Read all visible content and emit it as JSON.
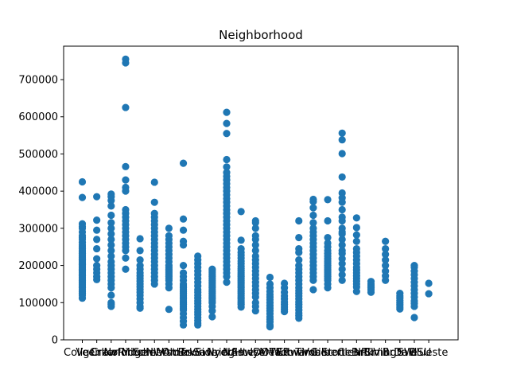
{
  "chart_data": {
    "type": "scatter",
    "title": "Neighborhood",
    "xlabel": "",
    "ylabel": "",
    "ylim": [
      0,
      790000
    ],
    "yticks": [
      0,
      100000,
      200000,
      300000,
      400000,
      500000,
      600000,
      700000
    ],
    "ytick_labels": [
      "0",
      "100000",
      "200000",
      "300000",
      "400000",
      "500000",
      "600000",
      "700000"
    ],
    "point_color": "#1f77b4",
    "grid": false,
    "legend": "none",
    "categories": [
      "CollgCr",
      "Veenker",
      "Crawfor",
      "NoRidge",
      "Mitchel",
      "Somerst",
      "NWAmes",
      "OldTown",
      "BrkSide",
      "Sawyer",
      "NridgHt",
      "NAmes",
      "SawyerW",
      "IDOTRR",
      "MeadowV",
      "Edwards",
      "Timber",
      "Gilbert",
      "StoneBr",
      "ClearCr",
      "NPkVill",
      "Blmngtn",
      "BrDale",
      "SWISU",
      "Blueste"
    ],
    "series": [
      {
        "values": [
          [
            425000,
            383000,
            312000,
            305000,
            300000,
            290000,
            280000,
            275000,
            270000,
            262000,
            255000,
            250000,
            245000,
            240000,
            236000,
            232000,
            228000,
            225000,
            222000,
            218000,
            215000,
            212000,
            208000,
            205000,
            202000,
            199000,
            196000,
            193000,
            190000,
            187000,
            184000,
            180000,
            176000,
            172000,
            168000,
            164000,
            160000,
            156000,
            152000,
            148000,
            144000,
            140000,
            135000,
            130000,
            125000,
            120000,
            112000
          ],
          [
            385000,
            322000,
            295000,
            270000,
            245000,
            218000,
            200000,
            190000,
            180000,
            170000,
            162000
          ],
          [
            392000,
            385000,
            375000,
            360000,
            335000,
            315000,
            300000,
            285000,
            270000,
            255000,
            240000,
            225000,
            210000,
            200000,
            190000,
            180000,
            170000,
            160000,
            150000,
            140000,
            120000,
            100000,
            95000,
            90000
          ],
          [
            755000,
            745000,
            625000,
            466000,
            430000,
            410000,
            400000,
            350000,
            340000,
            330000,
            320000,
            310000,
            300000,
            290000,
            280000,
            270000,
            260000,
            250000,
            240000,
            220000,
            190000
          ],
          [
            272000,
            240000,
            215000,
            200000,
            190000,
            180000,
            172000,
            165000,
            158000,
            150000,
            143000,
            136000,
            128000,
            120000,
            110000,
            100000,
            90000,
            85000
          ],
          [
            424000,
            370000,
            340000,
            330000,
            320000,
            310000,
            300000,
            290000,
            280000,
            270000,
            260000,
            250000,
            240000,
            230000,
            220000,
            210000,
            200000,
            190000,
            180000,
            170000,
            160000,
            150000
          ],
          [
            300000,
            280000,
            270000,
            260000,
            250000,
            240000,
            230000,
            220000,
            210000,
            200000,
            195000,
            190000,
            185000,
            180000,
            175000,
            170000,
            165000,
            160000,
            150000,
            140000,
            82000
          ],
          [
            475000,
            325000,
            295000,
            265000,
            255000,
            200000,
            180000,
            170000,
            160000,
            150000,
            145000,
            140000,
            135000,
            130000,
            125000,
            120000,
            115000,
            110000,
            105000,
            100000,
            95000,
            90000,
            85000,
            80000,
            70000,
            60000,
            50000,
            40000
          ],
          [
            225000,
            215000,
            205000,
            195000,
            185000,
            175000,
            165000,
            155000,
            145000,
            135000,
            128000,
            120000,
            112000,
            105000,
            98000,
            90000,
            82000,
            75000,
            68000,
            60000,
            52000,
            45000,
            40000
          ],
          [
            190000,
            185000,
            180000,
            175000,
            170000,
            165000,
            160000,
            155000,
            150000,
            145000,
            140000,
            135000,
            130000,
            125000,
            120000,
            115000,
            110000,
            105000,
            100000,
            90000,
            78000,
            62000
          ],
          [
            612000,
            582000,
            555000,
            485000,
            465000,
            450000,
            440000,
            430000,
            420000,
            410000,
            400000,
            390000,
            380000,
            370000,
            360000,
            350000,
            340000,
            330000,
            320000,
            310000,
            300000,
            290000,
            280000,
            270000,
            260000,
            250000,
            240000,
            230000,
            220000,
            210000,
            200000,
            190000,
            180000,
            170000,
            155000
          ],
          [
            345000,
            268000,
            245000,
            235000,
            228000,
            220000,
            212000,
            205000,
            198000,
            192000,
            186000,
            180000,
            175000,
            170000,
            165000,
            160000,
            155000,
            150000,
            145000,
            140000,
            135000,
            130000,
            125000,
            120000,
            115000,
            110000,
            105000,
            100000,
            95000,
            88000
          ],
          [
            320000,
            315000,
            300000,
            280000,
            270000,
            255000,
            240000,
            225000,
            215000,
            205000,
            195000,
            185000,
            175000,
            165000,
            155000,
            145000,
            135000,
            125000,
            115000,
            100000,
            90000,
            78000
          ],
          [
            168000,
            150000,
            140000,
            130000,
            122000,
            115000,
            108000,
            100000,
            92000,
            85000,
            78000,
            70000,
            62000,
            55000,
            48000,
            40000,
            35000
          ],
          [
            152000,
            140000,
            128000,
            118000,
            110000,
            102000,
            95000,
            88000,
            82000,
            76000
          ],
          [
            320000,
            275000,
            245000,
            235000,
            215000,
            200000,
            190000,
            180000,
            170000,
            160000,
            150000,
            140000,
            132000,
            125000,
            118000,
            110000,
            102000,
            95000,
            88000,
            80000,
            72000,
            65000,
            58000
          ],
          [
            378000,
            372000,
            355000,
            335000,
            315000,
            300000,
            290000,
            280000,
            270000,
            260000,
            250000,
            240000,
            230000,
            220000,
            210000,
            200000,
            190000,
            180000,
            170000,
            160000,
            135000
          ],
          [
            377000,
            320000,
            275000,
            260000,
            250000,
            240000,
            232000,
            225000,
            218000,
            212000,
            206000,
            200000,
            195000,
            190000,
            185000,
            180000,
            175000,
            170000,
            165000,
            160000,
            150000,
            140000
          ],
          [
            556000,
            538000,
            501000,
            438000,
            395000,
            382000,
            370000,
            350000,
            330000,
            320000,
            300000,
            290000,
            285000,
            270000,
            255000,
            240000,
            232000,
            218000,
            205000,
            190000,
            175000,
            160000
          ],
          [
            328000,
            302000,
            282000,
            265000,
            245000,
            235000,
            225000,
            215000,
            205000,
            195000,
            188000,
            180000,
            172000,
            165000,
            158000,
            150000,
            142000,
            130000
          ],
          [
            157000,
            150000,
            145000,
            140000,
            135000,
            128000
          ],
          [
            265000,
            245000,
            230000,
            215000,
            200000,
            185000,
            172000,
            160000
          ],
          [
            125000,
            118000,
            112000,
            106000,
            100000,
            94000,
            88000,
            83000
          ],
          [
            200000,
            195000,
            185000,
            175000,
            165000,
            155000,
            145000,
            135000,
            125000,
            115000,
            105000,
            98000,
            90000,
            60000
          ],
          [
            152000,
            124000
          ]
        ]
      }
    ]
  }
}
